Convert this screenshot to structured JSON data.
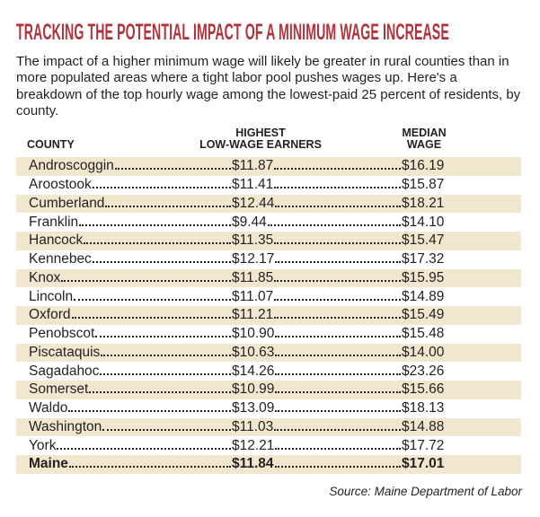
{
  "header": {
    "title": "TRACKING THE POTENTIAL IMPACT OF A MINIMUM WAGE INCREASE",
    "intro": "The impact of a higher minimum wage will likely be greater in rural counties than in more populated areas where a tight labor pool pushes wages up. Here's a breakdown of the top hourly wage among the lowest-paid 25 percent of residents, by county."
  },
  "table": {
    "columns": [
      [
        "COUNTY"
      ],
      [
        "HIGHEST",
        "LOW-WAGE EARNERS"
      ],
      [
        "MEDIAN",
        "WAGE"
      ]
    ],
    "rows": [
      [
        "Androscoggin",
        "$11.87",
        "$16.19"
      ],
      [
        "Aroostook",
        "$11.41",
        "$15.87"
      ],
      [
        "Cumberland",
        "$12.44",
        "$18.21"
      ],
      [
        "Franklin",
        "$9.44",
        "$14.10"
      ],
      [
        "Hancock",
        "$11.35",
        "$15.47"
      ],
      [
        "Kennebec",
        "$12.17",
        "$17.32"
      ],
      [
        "Knox",
        "$11.85",
        "$15.95"
      ],
      [
        "Lincoln",
        "$11.07",
        "$14.89"
      ],
      [
        "Oxford",
        "$11.21",
        "$15.49"
      ],
      [
        "Penobscot",
        "$10.90",
        "$15.48"
      ],
      [
        "Piscataquis",
        "$10.63",
        "$14.00"
      ],
      [
        "Sagadahoc",
        "$14.26",
        "$23.26"
      ],
      [
        "Somerset",
        "$10.99",
        "$15.66"
      ],
      [
        "Waldo",
        "$13.09",
        "$18.13"
      ],
      [
        "Washington",
        "$11.03",
        "$14.88"
      ],
      [
        "York",
        "$12.21",
        "$17.72"
      ]
    ],
    "total": [
      "Maine",
      "$11.84",
      "$17.01"
    ]
  },
  "source": "Source: Maine Department of Labor"
}
